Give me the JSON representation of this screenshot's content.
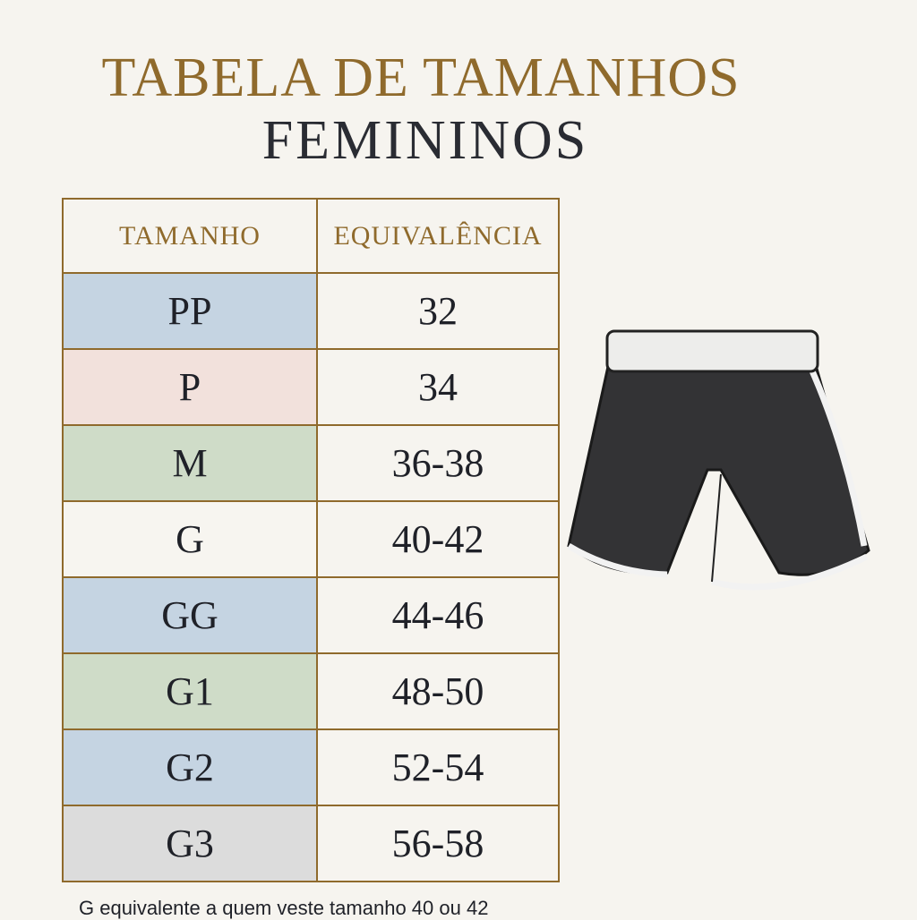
{
  "title": {
    "line1": "TABELA DE TAMANHOS",
    "line2": "FEMININOS"
  },
  "table": {
    "headers": [
      "TAMANHO",
      "EQUIVALÊNCIA"
    ],
    "rows": [
      {
        "size": "PP",
        "equiv": "32",
        "color": "#c5d4e2"
      },
      {
        "size": "P",
        "equiv": "34",
        "color": "#f2e1dc"
      },
      {
        "size": "M",
        "equiv": "36-38",
        "color": "#cfdcc8"
      },
      {
        "size": "G",
        "equiv": "40-42",
        "color": "#f7f5f0"
      },
      {
        "size": "GG",
        "equiv": "44-46",
        "color": "#c5d4e2"
      },
      {
        "size": "G1",
        "equiv": "48-50",
        "color": "#cfdcc8"
      },
      {
        "size": "G2",
        "equiv": "52-54",
        "color": "#c5d4e2"
      },
      {
        "size": "G3",
        "equiv": "56-58",
        "color": "#dcdcdc"
      }
    ]
  },
  "note": "G equivalente a quem veste tamanho 40 ou 42",
  "illustration": "shorts-icon"
}
